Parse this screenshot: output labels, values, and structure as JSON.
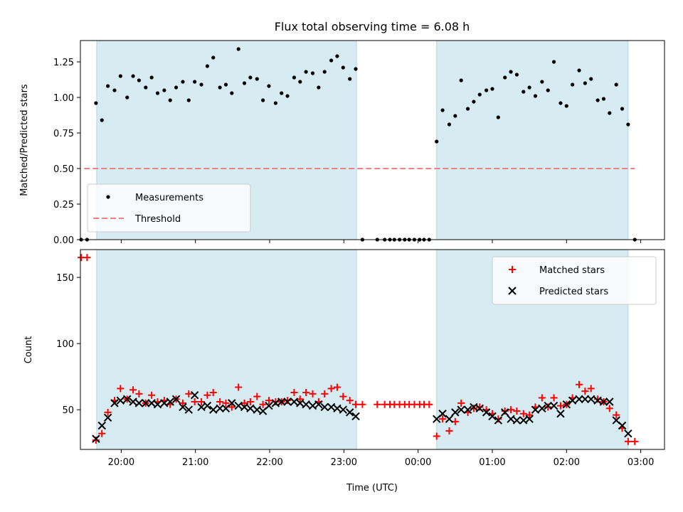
{
  "chart_data": [
    {
      "type": "scatter",
      "title": "Flux total observing time = 6.08 h",
      "xlabel": "",
      "ylabel": "Matched/Predicted stars",
      "xlim": [
        -4.55,
        3.32
      ],
      "ylim": [
        0,
        1.4
      ],
      "yticks": [
        0.0,
        0.25,
        0.5,
        0.75,
        1.0,
        1.25
      ],
      "ytick_labels": [
        "0.00",
        "0.25",
        "0.50",
        "0.75",
        "1.00",
        "1.25"
      ],
      "xticks": [
        -4,
        -3,
        -2,
        -1,
        0,
        1,
        2,
        3
      ],
      "observing_windows": [
        [
          -4.33,
          -0.83
        ],
        [
          0.25,
          2.83
        ]
      ],
      "threshold": {
        "name": "Threshold",
        "value": 0.5,
        "x_range": [
          -4.5,
          2.92
        ],
        "color": "#f08080"
      },
      "legend": {
        "position": "lower-left",
        "entries": [
          "Measurements",
          "Threshold"
        ]
      },
      "series": [
        {
          "name": "Measurements",
          "marker": "dot",
          "color": "#000000",
          "x": [
            -4.54,
            -4.46,
            -4.34,
            -4.26,
            -4.18,
            -4.09,
            -4.01,
            -3.92,
            -3.84,
            -3.76,
            -3.67,
            -3.59,
            -3.51,
            -3.42,
            -3.34,
            -3.26,
            -3.17,
            -3.09,
            -3.01,
            -2.92,
            -2.84,
            -2.76,
            -2.67,
            -2.59,
            -2.51,
            -2.42,
            -2.34,
            -2.26,
            -2.17,
            -2.09,
            -2.01,
            -1.92,
            -1.84,
            -1.76,
            -1.67,
            -1.59,
            -1.51,
            -1.42,
            -1.34,
            -1.26,
            -1.17,
            -1.09,
            -1.01,
            -0.92,
            -0.84,
            -0.75,
            -0.55,
            -0.45,
            -0.38,
            -0.32,
            -0.25,
            -0.18,
            -0.12,
            -0.05,
            0.02,
            0.08,
            0.15,
            0.25,
            0.33,
            0.42,
            0.5,
            0.58,
            0.67,
            0.75,
            0.83,
            0.92,
            1.0,
            1.08,
            1.17,
            1.25,
            1.33,
            1.42,
            1.5,
            1.58,
            1.67,
            1.75,
            1.83,
            1.92,
            2.0,
            2.08,
            2.17,
            2.25,
            2.33,
            2.42,
            2.5,
            2.58,
            2.67,
            2.75,
            2.83,
            2.92
          ],
          "y": [
            0.0,
            0.0,
            0.96,
            0.84,
            1.08,
            1.05,
            1.15,
            1.0,
            1.15,
            1.12,
            1.07,
            1.14,
            1.03,
            1.05,
            0.98,
            1.07,
            1.11,
            0.98,
            1.11,
            1.09,
            1.22,
            1.28,
            1.07,
            1.09,
            1.03,
            1.34,
            1.1,
            1.14,
            1.13,
            0.98,
            1.08,
            0.96,
            1.03,
            1.01,
            1.14,
            1.11,
            1.18,
            1.17,
            1.07,
            1.18,
            1.26,
            1.29,
            1.21,
            1.13,
            1.2,
            0.0,
            0.0,
            0.0,
            0.0,
            0.0,
            0.0,
            0.0,
            0.0,
            0.0,
            0.0,
            0.0,
            0.0,
            0.69,
            0.91,
            0.81,
            0.87,
            1.12,
            0.92,
            0.97,
            1.02,
            1.05,
            1.06,
            0.86,
            1.14,
            1.18,
            1.16,
            1.04,
            1.07,
            1.01,
            1.11,
            1.05,
            1.25,
            0.96,
            0.94,
            1.09,
            1.19,
            1.1,
            1.13,
            0.98,
            0.99,
            0.89,
            1.09,
            0.92,
            0.81,
            0.0
          ]
        }
      ]
    },
    {
      "type": "scatter",
      "title": "",
      "xlabel": "Time (UTC)",
      "ylabel": "Count",
      "xlim": [
        -4.55,
        3.32
      ],
      "ylim": [
        20,
        171
      ],
      "yticks": [
        50,
        100,
        150
      ],
      "ytick_labels": [
        "50",
        "100",
        "150"
      ],
      "xticks": [
        -4,
        -3,
        -2,
        -1,
        0,
        1,
        2,
        3
      ],
      "xtick_labels": [
        "20:00",
        "21:00",
        "22:00",
        "23:00",
        "00:00",
        "01:00",
        "02:00",
        "03:00"
      ],
      "observing_windows": [
        [
          -4.33,
          -0.83
        ],
        [
          0.25,
          2.83
        ]
      ],
      "legend": {
        "position": "upper-right",
        "entries": [
          "Matched stars",
          "Predicted stars"
        ]
      },
      "series": [
        {
          "name": "Matched stars",
          "marker": "plus",
          "color": "#ff0000",
          "x": [
            -4.54,
            -4.46,
            -4.34,
            -4.26,
            -4.18,
            -4.09,
            -4.01,
            -3.92,
            -3.84,
            -3.76,
            -3.67,
            -3.59,
            -3.51,
            -3.42,
            -3.34,
            -3.26,
            -3.17,
            -3.09,
            -3.01,
            -2.92,
            -2.84,
            -2.76,
            -2.67,
            -2.59,
            -2.51,
            -2.42,
            -2.34,
            -2.26,
            -2.17,
            -2.09,
            -2.01,
            -1.92,
            -1.84,
            -1.76,
            -1.67,
            -1.59,
            -1.51,
            -1.42,
            -1.34,
            -1.26,
            -1.17,
            -1.09,
            -1.01,
            -0.92,
            -0.84,
            -0.75,
            -0.55,
            -0.45,
            -0.38,
            -0.32,
            -0.25,
            -0.18,
            -0.12,
            -0.05,
            0.02,
            0.08,
            0.15,
            0.25,
            0.33,
            0.42,
            0.5,
            0.58,
            0.67,
            0.75,
            0.83,
            0.92,
            1.0,
            1.08,
            1.17,
            1.25,
            1.33,
            1.42,
            1.5,
            1.58,
            1.67,
            1.75,
            1.83,
            1.92,
            2.0,
            2.08,
            2.17,
            2.25,
            2.33,
            2.42,
            2.5,
            2.58,
            2.67,
            2.75,
            2.83,
            2.92
          ],
          "y": [
            165,
            165,
            27,
            32,
            48,
            57,
            66,
            58,
            65,
            62,
            55,
            61,
            56,
            57,
            54,
            58,
            55,
            62,
            56,
            56,
            61,
            63,
            56,
            55,
            52,
            67,
            55,
            56,
            60,
            54,
            57,
            56,
            56,
            57,
            63,
            58,
            63,
            62,
            56,
            62,
            66,
            67,
            60,
            57,
            54,
            54,
            54,
            54,
            54,
            54,
            54,
            54,
            54,
            54,
            54,
            54,
            54,
            30,
            43,
            34,
            41,
            55,
            48,
            51,
            52,
            50,
            47,
            43,
            49,
            50,
            49,
            47,
            46,
            52,
            59,
            52,
            59,
            53,
            54,
            59,
            69,
            64,
            66,
            58,
            56,
            51,
            46,
            36,
            26,
            26
          ]
        },
        {
          "name": "Predicted stars",
          "marker": "x",
          "color": "#000000",
          "x": [
            -4.34,
            -4.26,
            -4.18,
            -4.09,
            -4.01,
            -3.92,
            -3.84,
            -3.76,
            -3.67,
            -3.59,
            -3.51,
            -3.42,
            -3.34,
            -3.26,
            -3.17,
            -3.09,
            -3.01,
            -2.92,
            -2.84,
            -2.76,
            -2.67,
            -2.59,
            -2.51,
            -2.42,
            -2.34,
            -2.26,
            -2.17,
            -2.09,
            -2.01,
            -1.92,
            -1.84,
            -1.76,
            -1.67,
            -1.59,
            -1.51,
            -1.42,
            -1.34,
            -1.26,
            -1.17,
            -1.09,
            -1.01,
            -0.92,
            -0.84,
            0.25,
            0.33,
            0.42,
            0.5,
            0.58,
            0.67,
            0.75,
            0.83,
            0.92,
            1.0,
            1.08,
            1.17,
            1.25,
            1.33,
            1.42,
            1.5,
            1.58,
            1.67,
            1.75,
            1.83,
            1.92,
            2.0,
            2.08,
            2.17,
            2.25,
            2.33,
            2.42,
            2.5,
            2.58,
            2.67,
            2.75,
            2.83
          ],
          "y": [
            28,
            38,
            44,
            55,
            57,
            58,
            56,
            55,
            55,
            55,
            54,
            55,
            56,
            58,
            52,
            50,
            61,
            52,
            53,
            50,
            51,
            51,
            55,
            53,
            52,
            51,
            50,
            49,
            53,
            55,
            56,
            56,
            56,
            55,
            54,
            53,
            54,
            52,
            52,
            51,
            50,
            48,
            45,
            43,
            47,
            43,
            48,
            50,
            50,
            52,
            51,
            48,
            45,
            42,
            48,
            43,
            42,
            42,
            43,
            50,
            51,
            53,
            53,
            47,
            54,
            57,
            58,
            58,
            58,
            57,
            56,
            56,
            42,
            38,
            32
          ]
        }
      ]
    }
  ]
}
